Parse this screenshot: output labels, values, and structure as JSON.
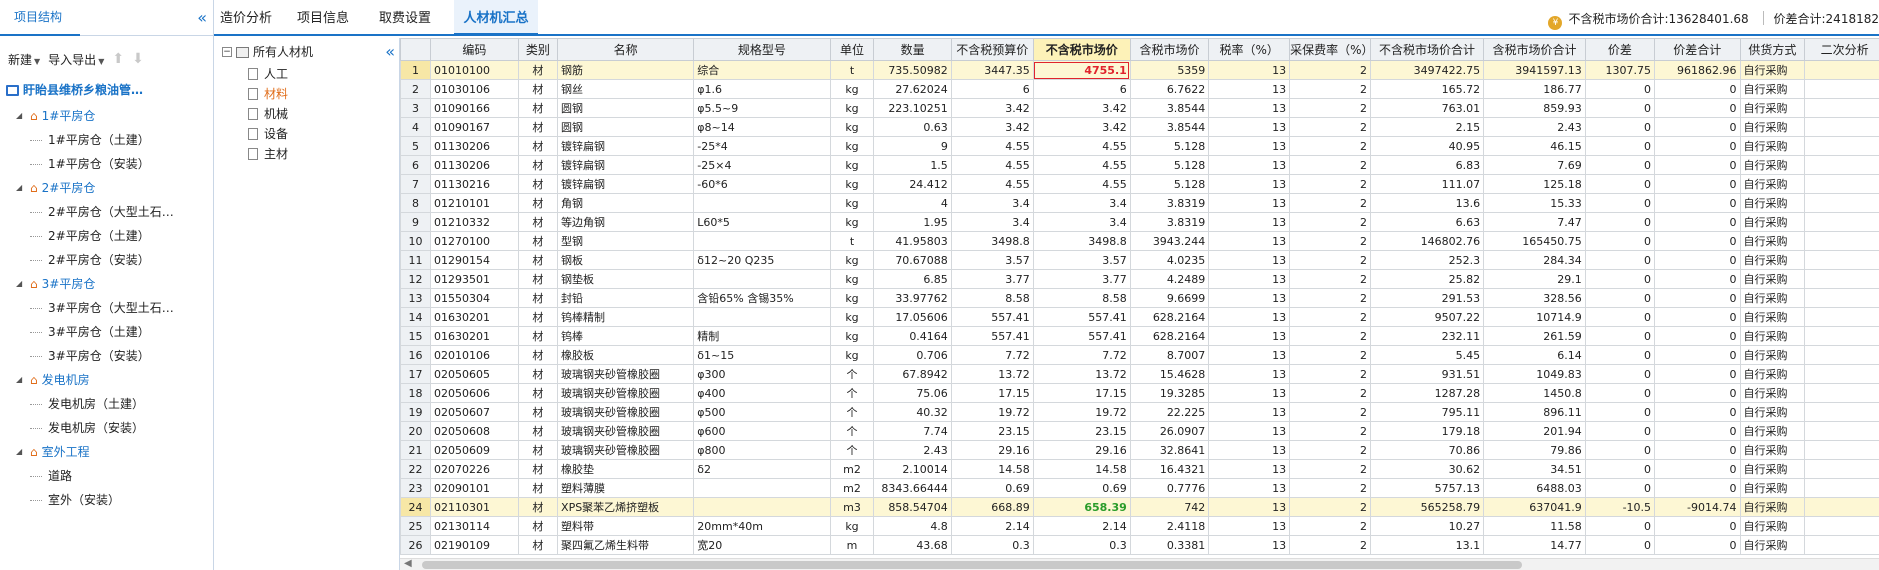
{
  "left_panel": {
    "tab": "项目结构",
    "toolbar": {
      "new": "新建",
      "import_export": "导入导出"
    },
    "root": "盱眙县维桥乡粮油管…",
    "groups": [
      {
        "label": "1#平房仓",
        "children": [
          "1#平房仓（土建）",
          "1#平房仓（安装）"
        ]
      },
      {
        "label": "2#平房仓",
        "children": [
          "2#平房仓（大型土石…",
          "2#平房仓（土建）",
          "2#平房仓（安装）"
        ]
      },
      {
        "label": "3#平房仓",
        "children": [
          "3#平房仓（大型土石…",
          "3#平房仓（土建）",
          "3#平房仓（安装）"
        ]
      },
      {
        "label": "发电机房",
        "children": [
          "发电机房（土建）",
          "发电机房（安装）"
        ]
      },
      {
        "label": "室外工程",
        "children": [
          "道路",
          "室外（安装）"
        ]
      }
    ]
  },
  "tabs": [
    "造价分析",
    "项目信息",
    "取费设置",
    "人材机汇总"
  ],
  "summary": {
    "market_total": "不含税市场价合计:13628401.68",
    "diff_total": "价差合计:2418182"
  },
  "category_tree": {
    "root": "所有人材机",
    "items": [
      "人工",
      "材料",
      "机械",
      "设备",
      "主材"
    ]
  },
  "table": {
    "headers": [
      "",
      "编码",
      "类别",
      "名称",
      "规格型号",
      "单位",
      "数量",
      "不含税预算价",
      "不含税市场价",
      "含税市场价",
      "税率（%）",
      "采保费率（%）",
      "不含税市场价合计",
      "含税市场价合计",
      "价差",
      "价差合计",
      "供货方式",
      "二次分析"
    ],
    "rows": [
      [
        "1",
        "01010100",
        "材",
        "钢筋",
        "综合",
        "t",
        "735.50982",
        "3447.35",
        "4755.1",
        "5359",
        "13",
        "2",
        "3497422.75",
        "3941597.13",
        "1307.75",
        "961862.96",
        "自行采购",
        ""
      ],
      [
        "2",
        "01030106",
        "材",
        "钢丝",
        "φ1.6",
        "kg",
        "27.62024",
        "6",
        "6",
        "6.7622",
        "13",
        "2",
        "165.72",
        "186.77",
        "0",
        "0",
        "自行采购",
        ""
      ],
      [
        "3",
        "01090166",
        "材",
        "圆钢",
        "φ5.5~9",
        "kg",
        "223.10251",
        "3.42",
        "3.42",
        "3.8544",
        "13",
        "2",
        "763.01",
        "859.93",
        "0",
        "0",
        "自行采购",
        ""
      ],
      [
        "4",
        "01090167",
        "材",
        "圆钢",
        "φ8~14",
        "kg",
        "0.63",
        "3.42",
        "3.42",
        "3.8544",
        "13",
        "2",
        "2.15",
        "2.43",
        "0",
        "0",
        "自行采购",
        ""
      ],
      [
        "5",
        "01130206",
        "材",
        "镀锌扁钢",
        "-25*4",
        "kg",
        "9",
        "4.55",
        "4.55",
        "5.128",
        "13",
        "2",
        "40.95",
        "46.15",
        "0",
        "0",
        "自行采购",
        ""
      ],
      [
        "6",
        "01130206",
        "材",
        "镀锌扁钢",
        "-25×4",
        "kg",
        "1.5",
        "4.55",
        "4.55",
        "5.128",
        "13",
        "2",
        "6.83",
        "7.69",
        "0",
        "0",
        "自行采购",
        ""
      ],
      [
        "7",
        "01130216",
        "材",
        "镀锌扁钢",
        "-60*6",
        "kg",
        "24.412",
        "4.55",
        "4.55",
        "5.128",
        "13",
        "2",
        "111.07",
        "125.18",
        "0",
        "0",
        "自行采购",
        ""
      ],
      [
        "8",
        "01210101",
        "材",
        "角钢",
        "",
        "kg",
        "4",
        "3.4",
        "3.4",
        "3.8319",
        "13",
        "2",
        "13.6",
        "15.33",
        "0",
        "0",
        "自行采购",
        ""
      ],
      [
        "9",
        "01210332",
        "材",
        "等边角钢",
        "L60*5",
        "kg",
        "1.95",
        "3.4",
        "3.4",
        "3.8319",
        "13",
        "2",
        "6.63",
        "7.47",
        "0",
        "0",
        "自行采购",
        ""
      ],
      [
        "10",
        "01270100",
        "材",
        "型钢",
        "",
        "t",
        "41.95803",
        "3498.8",
        "3498.8",
        "3943.244",
        "13",
        "2",
        "146802.76",
        "165450.75",
        "0",
        "0",
        "自行采购",
        ""
      ],
      [
        "11",
        "01290154",
        "材",
        "钢板",
        "δ12~20 Q235",
        "kg",
        "70.67088",
        "3.57",
        "3.57",
        "4.0235",
        "13",
        "2",
        "252.3",
        "284.34",
        "0",
        "0",
        "自行采购",
        ""
      ],
      [
        "12",
        "01293501",
        "材",
        "钢垫板",
        "",
        "kg",
        "6.85",
        "3.77",
        "3.77",
        "4.2489",
        "13",
        "2",
        "25.82",
        "29.1",
        "0",
        "0",
        "自行采购",
        ""
      ],
      [
        "13",
        "01550304",
        "材",
        "封铅",
        "含铅65% 含锡35%",
        "kg",
        "33.97762",
        "8.58",
        "8.58",
        "9.6699",
        "13",
        "2",
        "291.53",
        "328.56",
        "0",
        "0",
        "自行采购",
        ""
      ],
      [
        "14",
        "01630201",
        "材",
        "钨棒精制",
        "",
        "kg",
        "17.05606",
        "557.41",
        "557.41",
        "628.2164",
        "13",
        "2",
        "9507.22",
        "10714.9",
        "0",
        "0",
        "自行采购",
        ""
      ],
      [
        "15",
        "01630201",
        "材",
        "钨棒",
        "精制",
        "kg",
        "0.4164",
        "557.41",
        "557.41",
        "628.2164",
        "13",
        "2",
        "232.11",
        "261.59",
        "0",
        "0",
        "自行采购",
        ""
      ],
      [
        "16",
        "02010106",
        "材",
        "橡胶板",
        "δ1~15",
        "kg",
        "0.706",
        "7.72",
        "7.72",
        "8.7007",
        "13",
        "2",
        "5.45",
        "6.14",
        "0",
        "0",
        "自行采购",
        ""
      ],
      [
        "17",
        "02050605",
        "材",
        "玻璃钢夹砂管橡胶圈",
        "φ300",
        "个",
        "67.8942",
        "13.72",
        "13.72",
        "15.4628",
        "13",
        "2",
        "931.51",
        "1049.83",
        "0",
        "0",
        "自行采购",
        ""
      ],
      [
        "18",
        "02050606",
        "材",
        "玻璃钢夹砂管橡胶圈",
        "φ400",
        "个",
        "75.06",
        "17.15",
        "17.15",
        "19.3285",
        "13",
        "2",
        "1287.28",
        "1450.8",
        "0",
        "0",
        "自行采购",
        ""
      ],
      [
        "19",
        "02050607",
        "材",
        "玻璃钢夹砂管橡胶圈",
        "φ500",
        "个",
        "40.32",
        "19.72",
        "19.72",
        "22.225",
        "13",
        "2",
        "795.11",
        "896.11",
        "0",
        "0",
        "自行采购",
        ""
      ],
      [
        "20",
        "02050608",
        "材",
        "玻璃钢夹砂管橡胶圈",
        "φ600",
        "个",
        "7.74",
        "23.15",
        "23.15",
        "26.0907",
        "13",
        "2",
        "179.18",
        "201.94",
        "0",
        "0",
        "自行采购",
        ""
      ],
      [
        "21",
        "02050609",
        "材",
        "玻璃钢夹砂管橡胶圈",
        "φ800",
        "个",
        "2.43",
        "29.16",
        "29.16",
        "32.8641",
        "13",
        "2",
        "70.86",
        "79.86",
        "0",
        "0",
        "自行采购",
        ""
      ],
      [
        "22",
        "02070226",
        "材",
        "橡胶垫",
        "δ2",
        "m2",
        "2.10014",
        "14.58",
        "14.58",
        "16.4321",
        "13",
        "2",
        "30.62",
        "34.51",
        "0",
        "0",
        "自行采购",
        ""
      ],
      [
        "23",
        "02090101",
        "材",
        "塑料薄膜",
        "",
        "m2",
        "8343.66444",
        "0.69",
        "0.69",
        "0.7776",
        "13",
        "2",
        "5757.13",
        "6488.03",
        "0",
        "0",
        "自行采购",
        ""
      ],
      [
        "24",
        "02110301",
        "材",
        "XPS聚苯乙烯挤塑板",
        "",
        "m3",
        "858.54704",
        "668.89",
        "658.39",
        "742",
        "13",
        "2",
        "565258.79",
        "637041.9",
        "-10.5",
        "-9014.74",
        "自行采购",
        ""
      ],
      [
        "25",
        "02130114",
        "材",
        "塑料带",
        "20mm*40m",
        "kg",
        "4.8",
        "2.14",
        "2.14",
        "2.4118",
        "13",
        "2",
        "10.27",
        "11.58",
        "0",
        "0",
        "自行采购",
        ""
      ],
      [
        "26",
        "02190109",
        "材",
        "聚四氟乙烯生料带",
        "宽20",
        "m",
        "43.68",
        "0.3",
        "0.3",
        "0.3381",
        "13",
        "2",
        "13.1",
        "14.77",
        "0",
        "0",
        "自行采购",
        ""
      ]
    ]
  }
}
